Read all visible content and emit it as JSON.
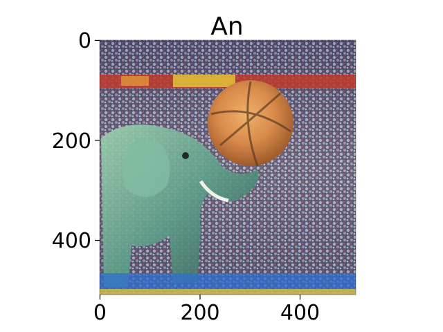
{
  "figure": {
    "title": "An",
    "image_description_colors": {
      "crowd_dark": "#2a2f52",
      "crowd_light": "#c9c2c8",
      "banner_red": "#c0392b",
      "banner_yellow": "#e0c33a",
      "ball_orange": "#d98a4a",
      "elephant_teal": "#5fa08a",
      "floor_blue": "#2f6fd0"
    },
    "x_axis": {
      "tick_labels": [
        "0",
        "200",
        "400"
      ],
      "tick_values": [
        0,
        200,
        400
      ],
      "range": [
        0,
        512
      ]
    },
    "y_axis": {
      "tick_labels": [
        "0",
        "200",
        "400"
      ],
      "tick_values": [
        0,
        200,
        400
      ],
      "range": [
        0,
        512
      ]
    }
  }
}
